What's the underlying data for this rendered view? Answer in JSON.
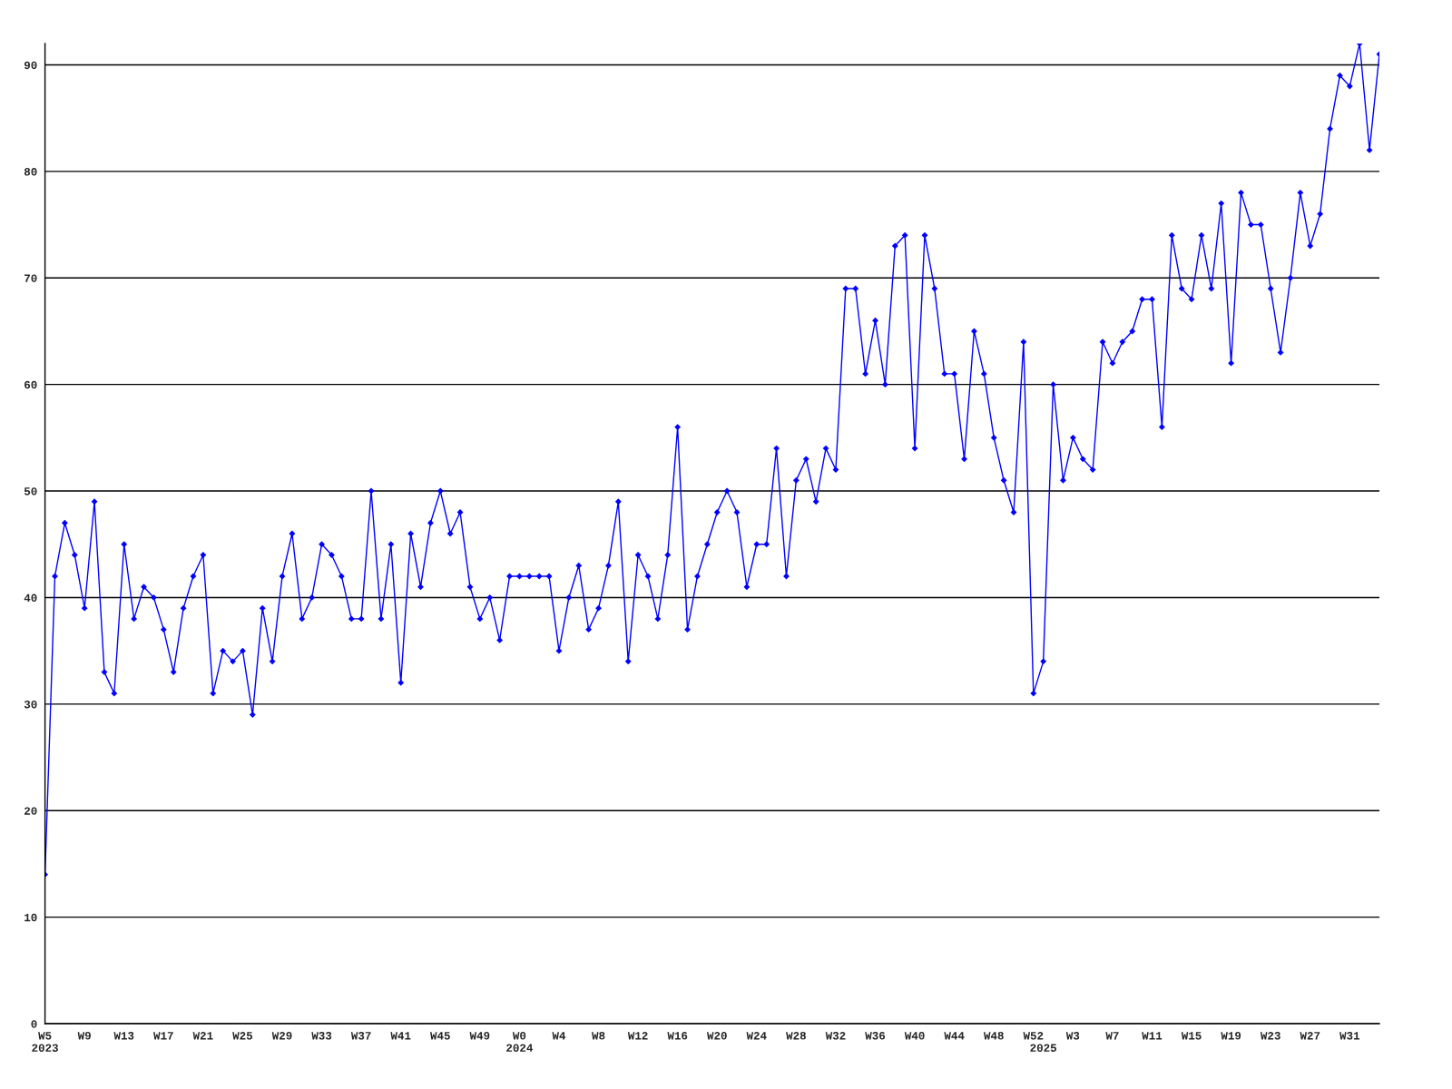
{
  "chart_data": {
    "type": "line",
    "categories": [
      "W5\n2023",
      null,
      null,
      null,
      "W9",
      null,
      null,
      null,
      "W13",
      null,
      null,
      null,
      "W17",
      null,
      null,
      null,
      "W21",
      null,
      null,
      null,
      "W25",
      null,
      null,
      null,
      "W29",
      null,
      null,
      null,
      "W33",
      null,
      null,
      null,
      "W37",
      null,
      null,
      null,
      "W41",
      null,
      null,
      null,
      "W45",
      null,
      null,
      null,
      "W49",
      null,
      null,
      null,
      "W0\n2024",
      null,
      null,
      null,
      "W4",
      null,
      null,
      null,
      "W8",
      null,
      null,
      null,
      "W12",
      null,
      null,
      null,
      "W16",
      null,
      null,
      null,
      "W20",
      null,
      null,
      null,
      "W24",
      null,
      null,
      null,
      "W28",
      null,
      null,
      null,
      "W32",
      null,
      null,
      null,
      "W36",
      null,
      null,
      null,
      "W40",
      null,
      null,
      null,
      "W44",
      null,
      null,
      null,
      "W48",
      null,
      null,
      null,
      "W52",
      "\n2025",
      null,
      null,
      "W3",
      null,
      null,
      null,
      "W7",
      null,
      null,
      null,
      "W11",
      null,
      null,
      null,
      "W15",
      null,
      null,
      null,
      "W19",
      null,
      null,
      null,
      "W23",
      null,
      null,
      null,
      "W27",
      null,
      null,
      null,
      "W31",
      null,
      null,
      null
    ],
    "series": [
      {
        "color": "#0000ff",
        "values": [
          14,
          42,
          47,
          44,
          39,
          49,
          33,
          31,
          45,
          38,
          41,
          40,
          37,
          33,
          39,
          42,
          44,
          31,
          35,
          34,
          35,
          29,
          39,
          34,
          42,
          46,
          38,
          40,
          45,
          44,
          42,
          38,
          38,
          50,
          38,
          45,
          32,
          46,
          41,
          47,
          50,
          46,
          48,
          41,
          38,
          40,
          36,
          42,
          42,
          42,
          42,
          42,
          35,
          40,
          43,
          37,
          39,
          43,
          49,
          34,
          44,
          42,
          38,
          44,
          56,
          37,
          42,
          45,
          48,
          50,
          48,
          41,
          45,
          45,
          54,
          42,
          51,
          53,
          49,
          54,
          52,
          69,
          69,
          61,
          66,
          60,
          73,
          74,
          54,
          74,
          69,
          61,
          61,
          53,
          65,
          61,
          55,
          51,
          48,
          64,
          31,
          34,
          60,
          51,
          55,
          53,
          52,
          64,
          62,
          64,
          65,
          68,
          68,
          56,
          74,
          69,
          68,
          74,
          69,
          77,
          62,
          78,
          75,
          75,
          69,
          63,
          70,
          78,
          73,
          76,
          84,
          89,
          88,
          92,
          82,
          91
        ]
      }
    ],
    "ylim": [
      0,
      92
    ],
    "yticks": [
      0,
      10,
      20,
      30,
      40,
      50,
      60,
      70,
      80,
      90
    ],
    "grid": "y",
    "marker": "diamond",
    "line_style": "solid",
    "legend": false
  }
}
